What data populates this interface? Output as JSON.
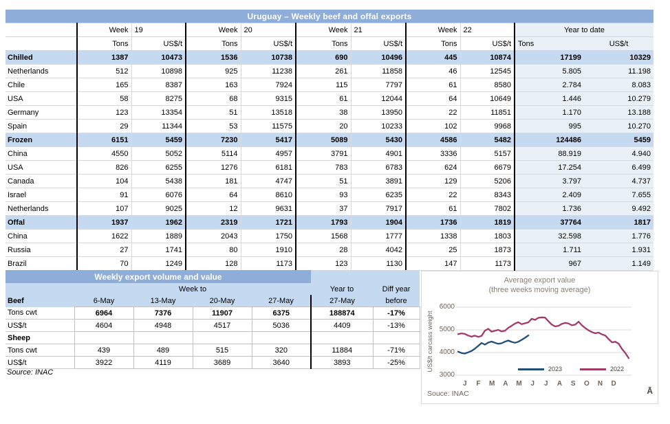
{
  "colors": {
    "header_bar": "#8fadd9",
    "section_row": "#c5d9f1",
    "ytd_column": "#eaf0f8",
    "series_2023": "#1f4e79",
    "series_2022": "#a2396b"
  },
  "top_table": {
    "title": "Uruguay – Weekly beef and offal exports",
    "week_label": "Week",
    "weeks": [
      "19",
      "20",
      "21",
      "22"
    ],
    "ytd_label": "Year to date",
    "tons_label": "Tons",
    "usdt_label": "US$/t",
    "ytd_tons_label": "Tons",
    "ytd_usdt_label": "US$/t",
    "rows": [
      {
        "label": "Chilled",
        "type": "section",
        "values": [
          "1387",
          "10473",
          "1536",
          "10738",
          "690",
          "10496",
          "445",
          "10874",
          "17199",
          "10329"
        ]
      },
      {
        "label": "Netherlands",
        "type": "country",
        "values": [
          "512",
          "10898",
          "925",
          "11238",
          "261",
          "11858",
          "46",
          "12545",
          "5.805",
          "11.198"
        ]
      },
      {
        "label": "Chile",
        "type": "country",
        "values": [
          "165",
          "8387",
          "163",
          "7924",
          "115",
          "7797",
          "61",
          "8580",
          "2.784",
          "8.083"
        ]
      },
      {
        "label": "USA",
        "type": "country",
        "values": [
          "58",
          "8275",
          "68",
          "9315",
          "61",
          "12044",
          "64",
          "10649",
          "1.446",
          "10.279"
        ]
      },
      {
        "label": "Germany",
        "type": "country",
        "values": [
          "123",
          "13354",
          "51",
          "13518",
          "38",
          "13950",
          "22",
          "11851",
          "1.170",
          "13.188"
        ]
      },
      {
        "label": "Spain",
        "type": "country",
        "values": [
          "29",
          "11344",
          "53",
          "11575",
          "20",
          "10233",
          "102",
          "9968",
          "995",
          "10.270"
        ]
      },
      {
        "label": "Frozen",
        "type": "section",
        "values": [
          "6151",
          "5459",
          "7230",
          "5417",
          "5089",
          "5430",
          "4586",
          "5482",
          "124486",
          "5459"
        ]
      },
      {
        "label": "China",
        "type": "country",
        "values": [
          "4550",
          "5052",
          "5114",
          "4957",
          "3791",
          "4901",
          "3336",
          "5157",
          "88.919",
          "4.940"
        ]
      },
      {
        "label": "USA",
        "type": "country",
        "values": [
          "826",
          "6255",
          "1276",
          "6181",
          "783",
          "6783",
          "624",
          "6679",
          "17.254",
          "6.499"
        ]
      },
      {
        "label": "Canada",
        "type": "country",
        "values": [
          "104",
          "5438",
          "181",
          "4747",
          "51",
          "3891",
          "129",
          "5206",
          "3.797",
          "4.737"
        ]
      },
      {
        "label": "Israel",
        "type": "country",
        "values": [
          "91",
          "6076",
          "64",
          "8610",
          "93",
          "6235",
          "22",
          "8343",
          "2.409",
          "7.655"
        ]
      },
      {
        "label": "Netherlands",
        "type": "country",
        "values": [
          "107",
          "9025",
          "12",
          "9631",
          "37",
          "7917",
          "61",
          "7802",
          "1.736",
          "9.492"
        ]
      },
      {
        "label": "Offal",
        "type": "section",
        "values": [
          "1937",
          "1962",
          "2319",
          "1721",
          "1793",
          "1904",
          "1736",
          "1819",
          "37764",
          "1817"
        ]
      },
      {
        "label": "China",
        "type": "country",
        "values": [
          "1622",
          "1889",
          "2043",
          "1750",
          "1568",
          "1777",
          "1338",
          "1803",
          "32.598",
          "1.776"
        ]
      },
      {
        "label": "Russia",
        "type": "country",
        "values": [
          "27",
          "1741",
          "80",
          "1910",
          "28",
          "4042",
          "25",
          "1873",
          "1.711",
          "1.931"
        ]
      },
      {
        "label": "Brazil",
        "type": "country",
        "values": [
          "70",
          "1249",
          "128",
          "1173",
          "123",
          "1130",
          "147",
          "1173",
          "967",
          "1.149"
        ]
      }
    ]
  },
  "bottom_table": {
    "title": "Weekly export volume and value",
    "week_to": "Week to",
    "year_to": "Year to",
    "diff_year": "Diff year",
    "col_headers": [
      "Beef",
      "6-May",
      "13-May",
      "20-May",
      "27-May",
      "27-May",
      "before"
    ],
    "rows": [
      {
        "label": "Tons cwt",
        "type": "metric",
        "bold": true,
        "values": [
          "6964",
          "7376",
          "11907",
          "6375",
          "188874",
          "-17%"
        ]
      },
      {
        "label": "US$/t",
        "type": "metric",
        "bold": false,
        "values": [
          "4604",
          "4948",
          "4517",
          "5036",
          "4409",
          "-13%"
        ]
      },
      {
        "label": "Sheep",
        "type": "section",
        "bold": false,
        "values": [
          "",
          "",
          "",
          "",
          "",
          ""
        ]
      },
      {
        "label": "Tons cwt",
        "type": "metric",
        "bold": false,
        "values": [
          "439",
          "489",
          "515",
          "320",
          "11884",
          "-71%"
        ]
      },
      {
        "label": "US$/t",
        "type": "metric",
        "bold": false,
        "values": [
          "3922",
          "4119",
          "3689",
          "3640",
          "3893",
          "-25%"
        ]
      }
    ],
    "source": "Source: INAC"
  },
  "chart_data": {
    "type": "line",
    "title": "Average export  value",
    "subtitle": "(three weeks moving average)",
    "ylabel": "US$/t carcass weight",
    "ylim": [
      3000,
      6000
    ],
    "yticks": [
      3000,
      4000,
      5000,
      6000
    ],
    "xticklabels": [
      "J",
      "F",
      "M",
      "A",
      "M",
      "J",
      "J",
      "A",
      "S",
      "O",
      "N",
      "D"
    ],
    "x_unit": "week of year (1-52)",
    "grid": true,
    "legend_position": "inside bottom center",
    "series": [
      {
        "name": "2023",
        "color": "#1f4e79",
        "x_start": 1,
        "x_step": 1,
        "values": [
          4040,
          3980,
          3955,
          4010,
          4070,
          4170,
          4290,
          4420,
          4350,
          4440,
          4485,
          4430,
          4385,
          4410,
          4480,
          4530,
          4470,
          4430,
          4475,
          4560,
          4650,
          4755
        ]
      },
      {
        "name": "2022",
        "color": "#a2396b",
        "x_start": 1,
        "x_step": 1,
        "values": [
          4810,
          4845,
          4820,
          4750,
          4700,
          4745,
          4690,
          4730,
          4960,
          5045,
          4920,
          4960,
          5000,
          4930,
          4960,
          5090,
          5180,
          5280,
          5340,
          5250,
          5290,
          5330,
          5490,
          5440,
          5530,
          5550,
          5540,
          5380,
          5230,
          5150,
          5180,
          5260,
          5310,
          5280,
          5200,
          5230,
          5360,
          5200,
          5080,
          4980,
          4900,
          4850,
          4880,
          4800,
          4750,
          4590,
          4450,
          4480,
          4390,
          4150,
          3980,
          3750
        ]
      }
    ],
    "source": "Souce: INAC",
    "corner_mark": "Ā"
  }
}
